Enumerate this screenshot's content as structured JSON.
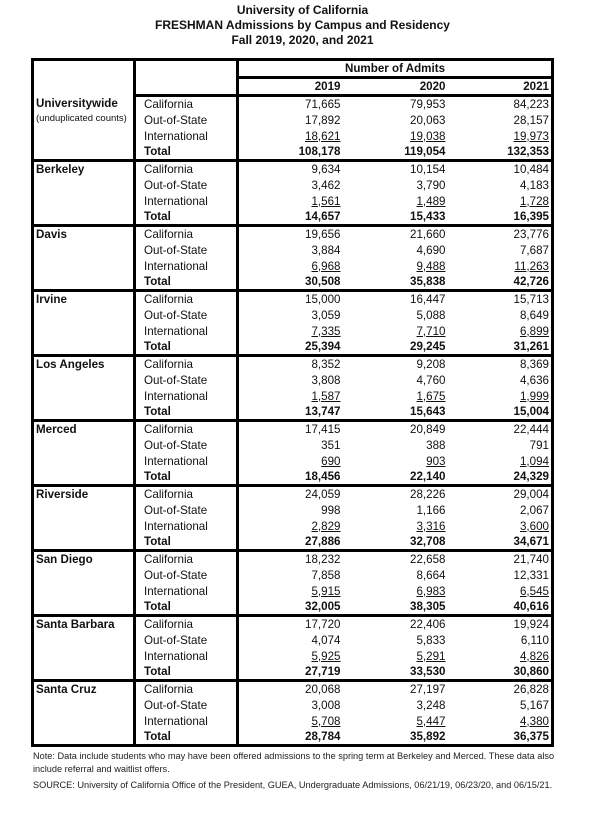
{
  "title": {
    "line1": "University of California",
    "line2": "FRESHMAN Admissions by Campus and Residency",
    "line3": "Fall 2019, 2020, and 2021"
  },
  "table": {
    "group_header": "Number of Admits",
    "years": [
      "2019",
      "2020",
      "2021"
    ],
    "campuses": [
      {
        "name": "Universitywide",
        "subtitle": "(unduplicated counts)",
        "rows": [
          {
            "label": "California",
            "values": [
              "71,665",
              "79,953",
              "84,223"
            ]
          },
          {
            "label": "Out-of-State",
            "values": [
              "17,892",
              "20,063",
              "28,157"
            ]
          },
          {
            "label": "International",
            "values": [
              "18,621",
              "19,038",
              "19,973"
            ]
          },
          {
            "label": "Total",
            "values": [
              "108,178",
              "119,054",
              "132,353"
            ]
          }
        ]
      },
      {
        "name": "Berkeley",
        "rows": [
          {
            "label": "California",
            "values": [
              "9,634",
              "10,154",
              "10,484"
            ]
          },
          {
            "label": "Out-of-State",
            "values": [
              "3,462",
              "3,790",
              "4,183"
            ]
          },
          {
            "label": "International",
            "values": [
              "1,561",
              "1,489",
              "1,728"
            ]
          },
          {
            "label": "Total",
            "values": [
              "14,657",
              "15,433",
              "16,395"
            ]
          }
        ]
      },
      {
        "name": "Davis",
        "rows": [
          {
            "label": "California",
            "values": [
              "19,656",
              "21,660",
              "23,776"
            ]
          },
          {
            "label": "Out-of-State",
            "values": [
              "3,884",
              "4,690",
              "7,687"
            ]
          },
          {
            "label": "International",
            "values": [
              "6,968",
              "9,488",
              "11,263"
            ]
          },
          {
            "label": "Total",
            "values": [
              "30,508",
              "35,838",
              "42,726"
            ]
          }
        ]
      },
      {
        "name": "Irvine",
        "rows": [
          {
            "label": "California",
            "values": [
              "15,000",
              "16,447",
              "15,713"
            ]
          },
          {
            "label": "Out-of-State",
            "values": [
              "3,059",
              "5,088",
              "8,649"
            ]
          },
          {
            "label": "International",
            "values": [
              "7,335",
              "7,710",
              "6,899"
            ]
          },
          {
            "label": "Total",
            "values": [
              "25,394",
              "29,245",
              "31,261"
            ]
          }
        ]
      },
      {
        "name": "Los Angeles",
        "rows": [
          {
            "label": "California",
            "values": [
              "8,352",
              "9,208",
              "8,369"
            ]
          },
          {
            "label": "Out-of-State",
            "values": [
              "3,808",
              "4,760",
              "4,636"
            ]
          },
          {
            "label": "International",
            "values": [
              "1,587",
              "1,675",
              "1,999"
            ]
          },
          {
            "label": "Total",
            "values": [
              "13,747",
              "15,643",
              "15,004"
            ]
          }
        ]
      },
      {
        "name": "Merced",
        "rows": [
          {
            "label": "California",
            "values": [
              "17,415",
              "20,849",
              "22,444"
            ]
          },
          {
            "label": "Out-of-State",
            "values": [
              "351",
              "388",
              "791"
            ]
          },
          {
            "label": "International",
            "values": [
              "690",
              "903",
              "1,094"
            ]
          },
          {
            "label": "Total",
            "values": [
              "18,456",
              "22,140",
              "24,329"
            ]
          }
        ]
      },
      {
        "name": "Riverside",
        "rows": [
          {
            "label": "California",
            "values": [
              "24,059",
              "28,226",
              "29,004"
            ]
          },
          {
            "label": "Out-of-State",
            "values": [
              "998",
              "1,166",
              "2,067"
            ]
          },
          {
            "label": "International",
            "values": [
              "2,829",
              "3,316",
              "3,600"
            ]
          },
          {
            "label": "Total",
            "values": [
              "27,886",
              "32,708",
              "34,671"
            ]
          }
        ]
      },
      {
        "name": "San Diego",
        "rows": [
          {
            "label": "California",
            "values": [
              "18,232",
              "22,658",
              "21,740"
            ]
          },
          {
            "label": "Out-of-State",
            "values": [
              "7,858",
              "8,664",
              "12,331"
            ]
          },
          {
            "label": "International",
            "values": [
              "5,915",
              "6,983",
              "6,545"
            ]
          },
          {
            "label": "Total",
            "values": [
              "32,005",
              "38,305",
              "40,616"
            ]
          }
        ]
      },
      {
        "name": "Santa Barbara",
        "rows": [
          {
            "label": "California",
            "values": [
              "17,720",
              "22,406",
              "19,924"
            ]
          },
          {
            "label": "Out-of-State",
            "values": [
              "4,074",
              "5,833",
              "6,110"
            ]
          },
          {
            "label": "International",
            "values": [
              "5,925",
              "5,291",
              "4,826"
            ]
          },
          {
            "label": "Total",
            "values": [
              "27,719",
              "33,530",
              "30,860"
            ]
          }
        ]
      },
      {
        "name": "Santa Cruz",
        "rows": [
          {
            "label": "California",
            "values": [
              "20,068",
              "27,197",
              "26,828"
            ]
          },
          {
            "label": "Out-of-State",
            "values": [
              "3,008",
              "3,248",
              "5,167"
            ]
          },
          {
            "label": "International",
            "values": [
              "5,708",
              "5,447",
              "4,380"
            ]
          },
          {
            "label": "Total",
            "values": [
              "28,784",
              "35,892",
              "36,375"
            ]
          }
        ]
      }
    ]
  },
  "notes": {
    "note": "Note: Data include students who may have been offered admissions to the spring term at Berkeley and Merced. These data also include referral and waitlist offers.",
    "source": "SOURCE: University of California Office of the President, GUEA, Undergraduate Admissions, 06/21/19, 06/23/20, and 06/15/21."
  }
}
